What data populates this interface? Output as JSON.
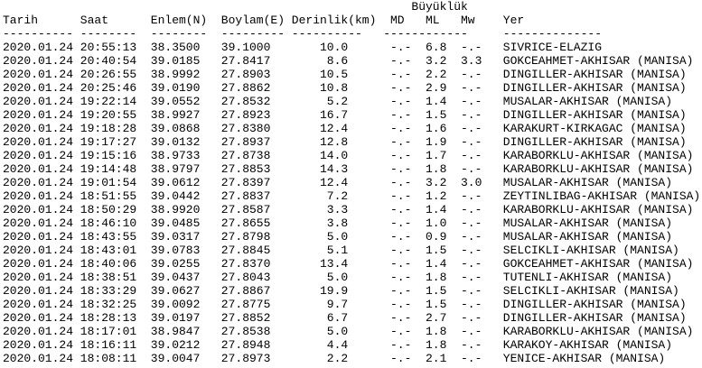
{
  "title": "Büyüklük",
  "header": [
    "Tarih",
    "Saat",
    "Enlem(N)",
    "Boylam(E)",
    "Derinlik(km)",
    "MD",
    "ML",
    "Mw",
    "Yer"
  ],
  "separator": [
    "----------",
    "--------",
    "--------",
    "---------",
    "----------",
    "------------",
    "--------------"
  ],
  "rows": [
    [
      "2020.01.24",
      "20:55:13",
      "38.3500",
      "39.1000",
      "10.0",
      "-.-",
      "6.8",
      "-.-",
      "SIVRICE-ELAZIG"
    ],
    [
      "2020.01.24",
      "20:40:54",
      "39.0185",
      "27.8417",
      "8.6",
      "-.-",
      "3.2",
      "3.3",
      "GOKCEAHMET-AKHISAR (MANISA)"
    ],
    [
      "2020.01.24",
      "20:26:55",
      "38.9992",
      "27.8903",
      "10.5",
      "-.-",
      "2.2",
      "-.-",
      "DINGILLER-AKHISAR (MANISA)"
    ],
    [
      "2020.01.24",
      "20:25:46",
      "39.0190",
      "27.8862",
      "10.8",
      "-.-",
      "2.9",
      "-.-",
      "DINGILLER-AKHISAR (MANISA)"
    ],
    [
      "2020.01.24",
      "19:22:14",
      "39.0552",
      "27.8532",
      "5.2",
      "-.-",
      "1.4",
      "-.-",
      "MUSALAR-AKHISAR (MANISA)"
    ],
    [
      "2020.01.24",
      "19:20:55",
      "38.9927",
      "27.8923",
      "16.7",
      "-.-",
      "1.5",
      "-.-",
      "DINGILLER-AKHISAR (MANISA)"
    ],
    [
      "2020.01.24",
      "19:18:28",
      "39.0868",
      "27.8380",
      "12.4",
      "-.-",
      "1.6",
      "-.-",
      "KARAKURT-KIRKAGAC (MANISA)"
    ],
    [
      "2020.01.24",
      "19:17:27",
      "39.0132",
      "27.8937",
      "12.8",
      "-.-",
      "1.9",
      "-.-",
      "DINGILLER-AKHISAR (MANISA)"
    ],
    [
      "2020.01.24",
      "19:15:16",
      "38.9733",
      "27.8738",
      "14.0",
      "-.-",
      "1.7",
      "-.-",
      "KARABORKLU-AKHISAR (MANISA)"
    ],
    [
      "2020.01.24",
      "19:14:48",
      "38.9797",
      "27.8853",
      "14.3",
      "-.-",
      "1.8",
      "-.-",
      "KARABORKLU-AKHISAR (MANISA)"
    ],
    [
      "2020.01.24",
      "19:01:54",
      "39.0612",
      "27.8397",
      "12.4",
      "-.-",
      "3.2",
      "3.0",
      "MUSALAR-AKHISAR (MANISA)"
    ],
    [
      "2020.01.24",
      "18:51:55",
      "39.0442",
      "27.8837",
      "7.2",
      "-.-",
      "1.2",
      "-.-",
      "ZEYTINLIBAG-AKHISAR (MANISA)"
    ],
    [
      "2020.01.24",
      "18:50:29",
      "38.9920",
      "27.8587",
      "3.3",
      "-.-",
      "1.4",
      "-.-",
      "KARABORKLU-AKHISAR (MANISA)"
    ],
    [
      "2020.01.24",
      "18:46:10",
      "39.0485",
      "27.8655",
      "3.8",
      "-.-",
      "1.0",
      "-.-",
      "MUSALAR-AKHISAR (MANISA)"
    ],
    [
      "2020.01.24",
      "18:43:55",
      "39.0317",
      "27.8798",
      "5.0",
      "-.-",
      "0.9",
      "-.-",
      "MUSALAR-AKHISAR (MANISA)"
    ],
    [
      "2020.01.24",
      "18:43:01",
      "39.0783",
      "27.8845",
      "5.1",
      "-.-",
      "1.5",
      "-.-",
      "SELCIKLI-AKHISAR (MANISA)"
    ],
    [
      "2020.01.24",
      "18:40:06",
      "39.0255",
      "27.8370",
      "13.4",
      "-.-",
      "1.4",
      "-.-",
      "GOKCEAHMET-AKHISAR (MANISA)"
    ],
    [
      "2020.01.24",
      "18:38:51",
      "39.0437",
      "27.8043",
      "5.0",
      "-.-",
      "1.8",
      "-.-",
      "TUTENLI-AKHISAR (MANISA)"
    ],
    [
      "2020.01.24",
      "18:33:29",
      "39.0627",
      "27.8867",
      "19.9",
      "-.-",
      "1.5",
      "-.-",
      "SELCIKLI-AKHISAR (MANISA)"
    ],
    [
      "2020.01.24",
      "18:32:25",
      "39.0092",
      "27.8775",
      "9.7",
      "-.-",
      "1.5",
      "-.-",
      "DINGILLER-AKHISAR (MANISA)"
    ],
    [
      "2020.01.24",
      "18:28:13",
      "39.0197",
      "27.8852",
      "6.7",
      "-.-",
      "2.7",
      "-.-",
      "DINGILLER-AKHISAR (MANISA)"
    ],
    [
      "2020.01.24",
      "18:17:01",
      "38.9847",
      "27.8538",
      "5.0",
      "-.-",
      "1.8",
      "-.-",
      "KARABORKLU-AKHISAR (MANISA)"
    ],
    [
      "2020.01.24",
      "18:16:11",
      "39.0212",
      "27.8948",
      "4.4",
      "-.-",
      "1.8",
      "-.-",
      "KARAKOY-AKHISAR (MANISA)"
    ],
    [
      "2020.01.24",
      "18:08:11",
      "39.0047",
      "27.8973",
      "2.2",
      "-.-",
      "2.1",
      "-.-",
      "YENICE-AKHISAR (MANISA)"
    ]
  ]
}
